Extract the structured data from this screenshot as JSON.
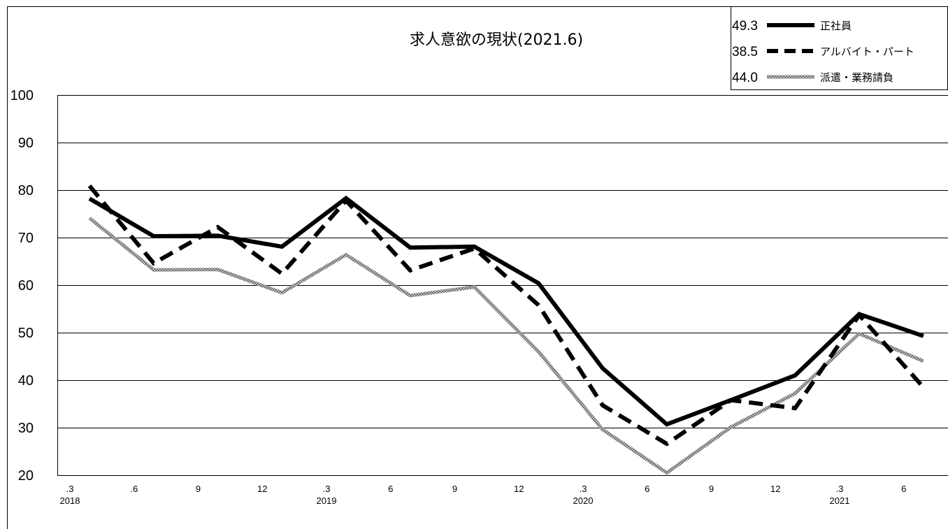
{
  "chart_data": {
    "type": "line",
    "title": "求人意欲の現状(2021.6)",
    "xlabel": "",
    "ylabel": "",
    "ylim": [
      20,
      100
    ],
    "yticks": [
      20,
      30,
      40,
      50,
      60,
      70,
      80,
      90,
      100
    ],
    "grid": true,
    "legend_position": "top-right",
    "x_ticks": [
      {
        "label": ".3",
        "year": "2018"
      },
      {
        "label": ".6",
        "year": ""
      },
      {
        "label": "9",
        "year": ""
      },
      {
        "label": "12",
        "year": ""
      },
      {
        "label": ".3",
        "year": "2019"
      },
      {
        "label": "6",
        "year": ""
      },
      {
        "label": "9",
        "year": ""
      },
      {
        "label": "12",
        "year": ""
      },
      {
        "label": ".3",
        "year": "2020"
      },
      {
        "label": "6",
        "year": ""
      },
      {
        "label": "9",
        "year": ""
      },
      {
        "label": "12",
        "year": ""
      },
      {
        "label": ".3",
        "year": "2021"
      },
      {
        "label": "6",
        "year": ""
      }
    ],
    "series": [
      {
        "name": "正社員",
        "legend_value": "49.3",
        "color": "#000000",
        "style": "solid",
        "values": [
          78.2,
          70.3,
          70.4,
          68.1,
          78.3,
          67.9,
          68.1,
          60.4,
          42.5,
          30.7,
          35.8,
          41.0,
          53.9,
          49.3
        ]
      },
      {
        "name": "アルバイト・パート",
        "legend_value": "38.5",
        "color": "#000000",
        "style": "dashed",
        "values": [
          80.9,
          64.6,
          72.2,
          62.4,
          77.8,
          63.1,
          67.7,
          55.8,
          34.7,
          26.6,
          35.8,
          34.1,
          53.7,
          38.5
        ]
      },
      {
        "name": "派遣・業務請負",
        "legend_value": "44.0",
        "color": "#aaaaaa",
        "style": "hatched",
        "values": [
          74.1,
          63.2,
          63.3,
          58.4,
          66.4,
          57.8,
          59.6,
          46.0,
          29.6,
          20.5,
          30.1,
          37.2,
          49.8,
          44.0
        ]
      }
    ]
  }
}
